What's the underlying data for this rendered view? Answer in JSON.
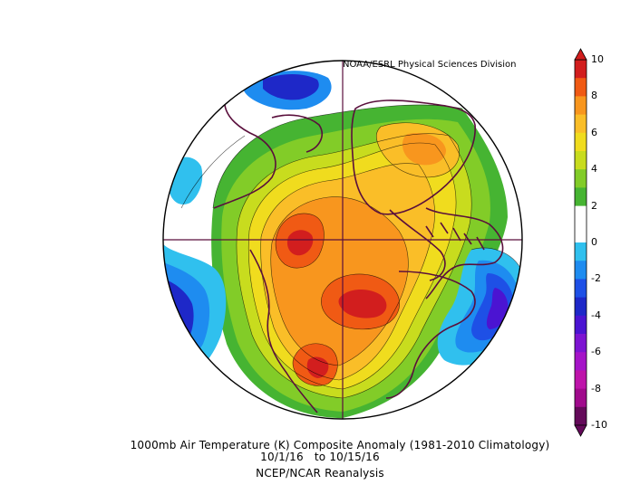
{
  "credit": "NOAA/ESRL Physical Sciences Division",
  "caption": {
    "line1": "1000mb Air Temperature (K) Composite Anomaly (1981-2010 Climatology)",
    "line2": "10/1/16   to 10/15/16",
    "line3": "NCEP/NCAR Reanalysis"
  },
  "colorbar": {
    "labels": [
      "10",
      "8",
      "6",
      "4",
      "2",
      "0",
      "-2",
      "-4",
      "-6",
      "-8",
      "-10"
    ],
    "colors": [
      "#d21e1e",
      "#f05a14",
      "#f8961e",
      "#fabe28",
      "#f0dc1e",
      "#c8dc1e",
      "#82cc28",
      "#46b432",
      "#ffffff",
      "#ffffff",
      "#30c0ee",
      "#1e8cf0",
      "#1e50e6",
      "#1e28c8",
      "#4b14d2",
      "#7d14d2",
      "#a514c8",
      "#be14aa",
      "#a00a8c",
      "#640a5a"
    ]
  },
  "map": {
    "palette": {
      "deep_warm": "#d21e1e",
      "warm": "#f05a14",
      "orange": "#f8961e",
      "gold": "#fabe28",
      "yellow": "#f0dc1e",
      "lime": "#c8dc1e",
      "light_green": "#82cc28",
      "green": "#46b432",
      "neutral": "#ffffff",
      "cyan": "#30c0ee",
      "sky": "#1e8cf0",
      "blue": "#1e50e6",
      "navy": "#1e28c8",
      "indigo": "#4b14d2",
      "violet": "#7d14d2",
      "coast": "#5a0f3c"
    }
  }
}
